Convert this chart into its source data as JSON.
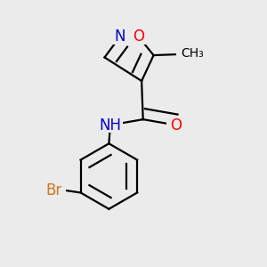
{
  "bg_color": "#ebebeb",
  "atom_colors": {
    "C": "#000000",
    "N": "#0000cc",
    "O": "#ff0000",
    "Br": "#cc7722",
    "H": "#000000"
  },
  "bond_color": "#000000",
  "bond_width": 1.6,
  "font_size_atoms": 12,
  "font_size_methyl": 10
}
